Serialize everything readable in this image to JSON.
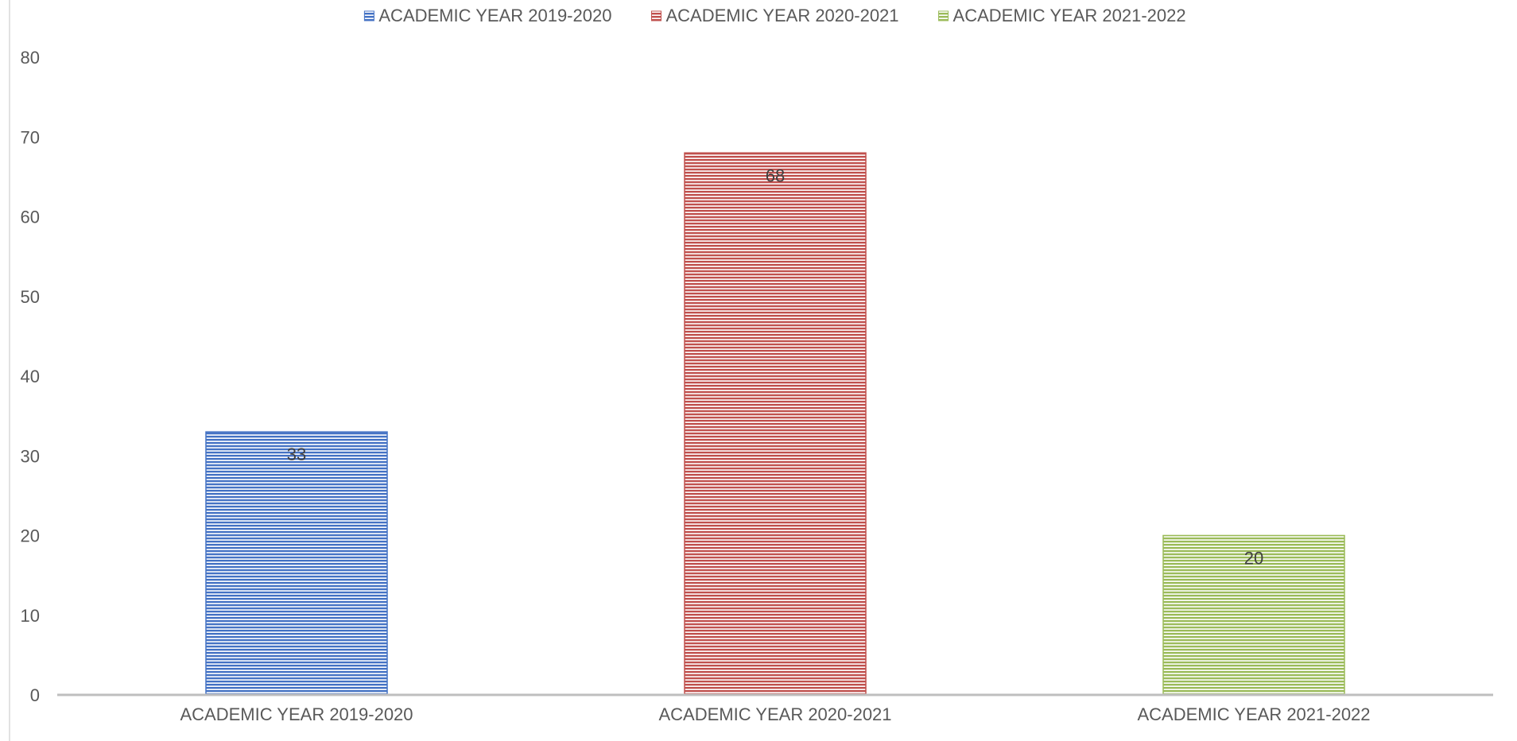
{
  "chart_data": {
    "type": "bar",
    "title": "",
    "xlabel": "",
    "ylabel": "",
    "categories": [
      "ACADEMIC YEAR 2019-2020",
      "ACADEMIC YEAR 2020-2021",
      "ACADEMIC YEAR 2021-2022"
    ],
    "values": [
      33,
      68,
      20
    ],
    "colors": [
      "#4472c4",
      "#c0504d",
      "#9bbb59"
    ],
    "fill_pattern": "horizontal-stripes",
    "ylim": [
      0,
      80
    ],
    "yticks": [
      0,
      10,
      20,
      30,
      40,
      50,
      60,
      70,
      80
    ],
    "ytick_labels": [
      "0",
      "10",
      "20",
      "30",
      "40",
      "50",
      "60",
      "70",
      "80"
    ],
    "grid": false,
    "legend": {
      "placement": "top-center",
      "entries": [
        "ACADEMIC YEAR 2019-2020",
        "ACADEMIC YEAR 2020-2021",
        "ACADEMIC YEAR 2021-2022"
      ]
    },
    "data_labels": [
      "33",
      "68",
      "20"
    ],
    "data_label_position": "inside-top"
  }
}
